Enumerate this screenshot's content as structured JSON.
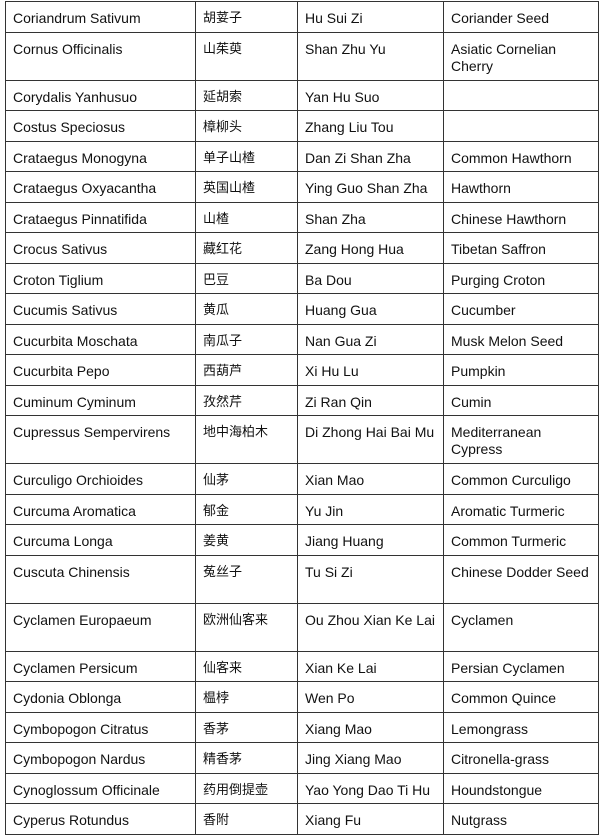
{
  "rows": [
    {
      "latin": "Coriandrum Sativum",
      "chinese": "胡荽子",
      "pinyin": "Hu Sui Zi",
      "english": "Coriander Seed"
    },
    {
      "latin": "Cornus Officinalis",
      "chinese": "山茱萸",
      "pinyin": "Shan Zhu Yu",
      "english": "Asiatic Cornelian Cherry"
    },
    {
      "latin": "Corydalis Yanhusuo",
      "chinese": "延胡索",
      "pinyin": "Yan Hu Suo",
      "english": ""
    },
    {
      "latin": "Costus Speciosus",
      "chinese": "樟柳头",
      "pinyin": "Zhang Liu Tou",
      "english": ""
    },
    {
      "latin": "Crataegus Monogyna",
      "chinese": "单子山楂",
      "pinyin": "Dan Zi Shan Zha",
      "english": "Common Hawthorn"
    },
    {
      "latin": "Crataegus Oxyacantha",
      "chinese": "英国山楂",
      "pinyin": "Ying Guo Shan Zha",
      "english": "Hawthorn"
    },
    {
      "latin": "Crataegus Pinnatifida",
      "chinese": "山楂",
      "pinyin": "Shan Zha",
      "english": "Chinese Hawthorn"
    },
    {
      "latin": "Crocus Sativus",
      "chinese": "藏红花",
      "pinyin": "Zang Hong Hua",
      "english": "Tibetan Saffron"
    },
    {
      "latin": "Croton Tiglium",
      "chinese": "巴豆",
      "pinyin": "Ba Dou",
      "english": "Purging Croton"
    },
    {
      "latin": "Cucumis Sativus",
      "chinese": "黄瓜",
      "pinyin": "Huang Gua",
      "english": "Cucumber"
    },
    {
      "latin": "Cucurbita Moschata",
      "chinese": "南瓜子",
      "pinyin": "Nan Gua Zi",
      "english": "Musk Melon Seed"
    },
    {
      "latin": "Cucurbita Pepo",
      "chinese": "西葫芦",
      "pinyin": "Xi Hu Lu",
      "english": "Pumpkin"
    },
    {
      "latin": "Cuminum Cyminum",
      "chinese": "孜然芹",
      "pinyin": "Zi Ran Qin",
      "english": "Cumin"
    },
    {
      "latin": "Cupressus Sempervirens",
      "chinese": "地中海柏木",
      "pinyin": "Di Zhong Hai Bai Mu",
      "english": "Mediterranean Cypress"
    },
    {
      "latin": "Curculigo Orchioides",
      "chinese": "仙茅",
      "pinyin": "Xian Mao",
      "english": "Common Curculigo"
    },
    {
      "latin": "Curcuma Aromatica",
      "chinese": "郁金",
      "pinyin": "Yu Jin",
      "english": "Aromatic Turmeric"
    },
    {
      "latin": "Curcuma Longa",
      "chinese": "姜黄",
      "pinyin": "Jiang Huang",
      "english": "Common Turmeric"
    },
    {
      "latin": "Cuscuta Chinensis",
      "chinese": "菟丝子",
      "pinyin": "Tu Si Zi",
      "english": "Chinese Dodder Seed"
    },
    {
      "latin": "Cyclamen Europaeum",
      "chinese": "欧洲仙客来",
      "pinyin": "Ou Zhou Xian Ke Lai",
      "english": "Cyclamen"
    },
    {
      "latin": "Cyclamen Persicum",
      "chinese": "仙客来",
      "pinyin": "Xian Ke Lai",
      "english": "Persian Cyclamen"
    },
    {
      "latin": "Cydonia Oblonga",
      "chinese": "榅桲",
      "pinyin": "Wen Po",
      "english": "Common Quince"
    },
    {
      "latin": "Cymbopogon Citratus",
      "chinese": "香茅",
      "pinyin": "Xiang Mao",
      "english": "Lemongrass"
    },
    {
      "latin": "Cymbopogon Nardus",
      "chinese": "精香茅",
      "pinyin": "Jing Xiang Mao",
      "english": "Citronella-grass"
    },
    {
      "latin": "Cynoglossum Officinale",
      "chinese": "药用倒提壶",
      "pinyin": "Yao Yong Dao Ti Hu",
      "english": "Houndstongue"
    },
    {
      "latin": "Cyperus Rotundus",
      "chinese": "香附",
      "pinyin": "Xiang Fu",
      "english": "Nutgrass"
    }
  ]
}
